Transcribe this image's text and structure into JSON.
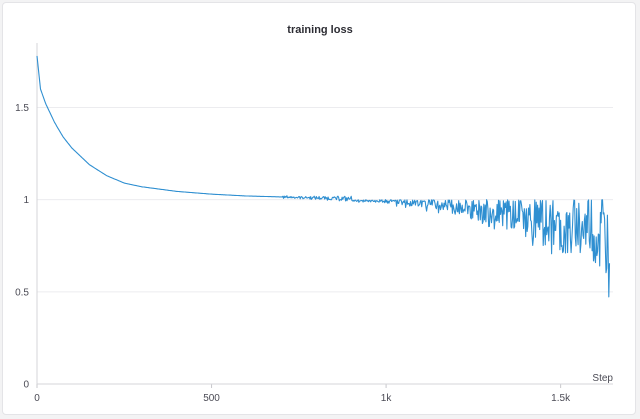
{
  "chart_data": {
    "type": "line",
    "title": "training loss",
    "xlabel": "Step",
    "ylabel": "",
    "xlim": [
      0,
      1650
    ],
    "ylim": [
      0,
      1.85
    ],
    "x_ticks": [
      {
        "value": 0,
        "label": "0"
      },
      {
        "value": 500,
        "label": "500"
      },
      {
        "value": 1000,
        "label": "1k"
      },
      {
        "value": 1500,
        "label": "1.5k"
      }
    ],
    "y_ticks": [
      {
        "value": 0,
        "label": "0"
      },
      {
        "value": 0.5,
        "label": "0.5"
      },
      {
        "value": 1,
        "label": "1"
      },
      {
        "value": 1.5,
        "label": "1.5"
      }
    ],
    "grid": "horizontal",
    "series": [
      {
        "name": "",
        "color": "#2f8fd1",
        "x": [
          0,
          10,
          25,
          50,
          75,
          100,
          150,
          200,
          250,
          300,
          400,
          500,
          600,
          700,
          800,
          900,
          1000,
          1050,
          1100,
          1150,
          1200,
          1250,
          1300,
          1350,
          1400,
          1420,
          1440,
          1460,
          1480,
          1500,
          1520,
          1540,
          1560,
          1580,
          1600,
          1620,
          1640
        ],
        "y": [
          1.78,
          1.6,
          1.52,
          1.42,
          1.34,
          1.28,
          1.19,
          1.13,
          1.09,
          1.07,
          1.045,
          1.03,
          1.02,
          1.015,
          1.01,
          1.005,
          1.0,
          0.995,
          0.99,
          0.985,
          0.97,
          0.96,
          0.95,
          0.93,
          0.92,
          0.88,
          0.9,
          0.86,
          0.89,
          0.84,
          0.8,
          0.88,
          0.83,
          0.86,
          0.79,
          0.85,
          0.72
        ]
      }
    ]
  }
}
